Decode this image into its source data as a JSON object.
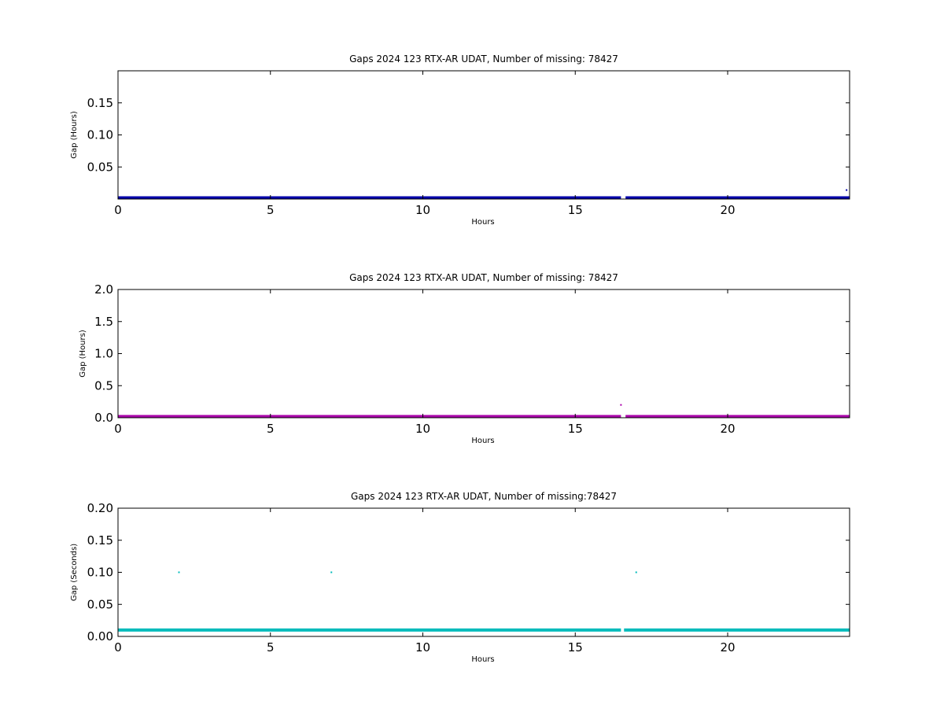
{
  "chart_data": [
    {
      "type": "scatter",
      "title": "Gaps 2024 123 RTX-AR  UDAT, Number of missing: 78427",
      "xlabel": "Hours",
      "ylabel": "Gap (Hours)",
      "xlim": [
        0,
        24
      ],
      "ylim": [
        0,
        0.2
      ],
      "xticks": [
        0,
        5,
        10,
        15,
        20
      ],
      "xtick_labels": [
        "0",
        "5",
        "10",
        "15",
        "20"
      ],
      "yticks": [
        0.05,
        0.1,
        0.15
      ],
      "ytick_labels": [
        "0.05",
        "0.10",
        "0.15"
      ],
      "grid": false,
      "color": "#0000aa",
      "series": [
        {
          "baseline": {
            "y": 0.0003,
            "x_ranges": [
              [
                0,
                16.5
              ],
              [
                16.65,
                24
              ]
            ]
          },
          "points": [
            {
              "x": 9.25,
              "y": 0.003
            },
            {
              "x": 23.9,
              "y": 0.014
            }
          ]
        }
      ]
    },
    {
      "type": "scatter",
      "title": "Gaps 2024 123 RTX-AR  UDAT, Number of missing: 78427",
      "xlabel": "Hours",
      "ylabel": "Gap (Hours)",
      "xlim": [
        0,
        24
      ],
      "ylim": [
        0,
        2.0
      ],
      "xticks": [
        0,
        5,
        10,
        15,
        20
      ],
      "xtick_labels": [
        "0",
        "5",
        "10",
        "15",
        "20"
      ],
      "yticks": [
        0.0,
        0.5,
        1.0,
        1.5,
        2.0
      ],
      "ytick_labels": [
        "0.0",
        "0.5",
        "1.0",
        "1.5",
        "2.0"
      ],
      "grid": false,
      "color": "#aa00aa",
      "series": [
        {
          "baseline": {
            "y": 0.003,
            "x_ranges": [
              [
                0,
                16.5
              ],
              [
                16.65,
                24
              ]
            ]
          },
          "points": [
            {
              "x": 16.5,
              "y": 0.2
            }
          ]
        }
      ]
    },
    {
      "type": "scatter",
      "title": "Gaps 2024 123 RTX-AR  UDAT, Number of missing:78427",
      "xlabel": "Hours",
      "ylabel": "Gap (Seconds)",
      "xlim": [
        0,
        24
      ],
      "ylim": [
        0,
        0.2
      ],
      "xticks": [
        0,
        5,
        10,
        15,
        20
      ],
      "xtick_labels": [
        "0",
        "5",
        "10",
        "15",
        "20"
      ],
      "yticks": [
        0.0,
        0.05,
        0.1,
        0.15,
        0.2
      ],
      "ytick_labels": [
        "0.00",
        "0.05",
        "0.10",
        "0.15",
        "0.20"
      ],
      "grid": false,
      "color": "#00bbbb",
      "series": [
        {
          "baseline": {
            "y": 0.01,
            "x_ranges": [
              [
                0,
                16.5
              ],
              [
                16.6,
                24
              ]
            ]
          },
          "points": [
            {
              "x": 2.0,
              "y": 0.1
            },
            {
              "x": 7.0,
              "y": 0.1
            },
            {
              "x": 17.0,
              "y": 0.1
            }
          ]
        }
      ]
    }
  ]
}
